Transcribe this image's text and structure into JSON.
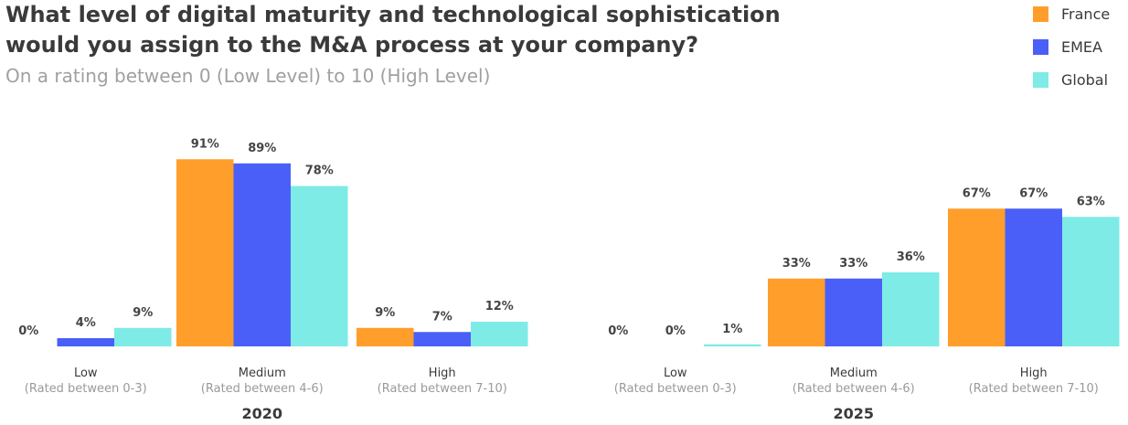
{
  "title_line1": "What level of digital maturity and technological sophistication",
  "title_line2": "would you assign to the M&A process at your company?",
  "subtitle": "On a rating between 0 (Low Level) to 10 (High Level)",
  "legend": [
    {
      "label": "France",
      "color": "#FF9E2B"
    },
    {
      "label": "EMEA",
      "color": "#4A5FF7"
    },
    {
      "label": "Global",
      "color": "#7EEBE6"
    }
  ],
  "chart_data": [
    {
      "type": "bar",
      "title": "2020",
      "categories": [
        "Low",
        "Medium",
        "High"
      ],
      "category_sublabels": [
        "(Rated between 0-3)",
        "(Rated between 4-6)",
        "(Rated between 7-10)"
      ],
      "series": [
        {
          "name": "France",
          "values": [
            0,
            91,
            9
          ],
          "labels": [
            "0%",
            "91%",
            "9%"
          ]
        },
        {
          "name": "EMEA",
          "values": [
            4,
            89,
            7
          ],
          "labels": [
            "4%",
            "89%",
            "7%"
          ]
        },
        {
          "name": "Global",
          "values": [
            9,
            78,
            12
          ],
          "labels": [
            "9%",
            "78%",
            "12%"
          ]
        }
      ],
      "ylim": [
        0,
        100
      ],
      "grid": false
    },
    {
      "type": "bar",
      "title": "2025",
      "categories": [
        "Low",
        "Medium",
        "High"
      ],
      "category_sublabels": [
        "(Rated between 0-3)",
        "(Rated between 4-6)",
        "(Rated between 7-10)"
      ],
      "series": [
        {
          "name": "France",
          "values": [
            0,
            33,
            67
          ],
          "labels": [
            "0%",
            "33%",
            "67%"
          ]
        },
        {
          "name": "EMEA",
          "values": [
            0,
            33,
            67
          ],
          "labels": [
            "0%",
            "33%",
            "67%"
          ]
        },
        {
          "name": "Global",
          "values": [
            1,
            36,
            63
          ],
          "labels": [
            "1%",
            "36%",
            "63%"
          ]
        }
      ],
      "ylim": [
        0,
        100
      ],
      "grid": false
    }
  ]
}
